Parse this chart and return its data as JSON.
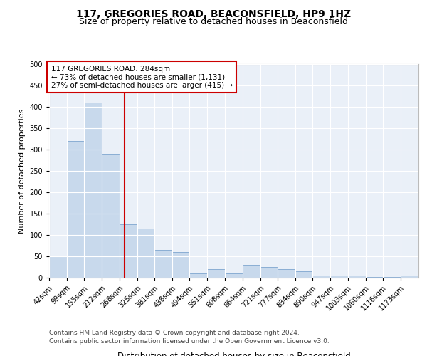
{
  "title": "117, GREGORIES ROAD, BEACONSFIELD, HP9 1HZ",
  "subtitle": "Size of property relative to detached houses in Beaconsfield",
  "xlabel": "Distribution of detached houses by size in Beaconsfield",
  "ylabel": "Number of detached properties",
  "footer_line1": "Contains HM Land Registry data © Crown copyright and database right 2024.",
  "footer_line2": "Contains public sector information licensed under the Open Government Licence v3.0.",
  "annotation_line1": "117 GREGORIES ROAD: 284sqm",
  "annotation_line2": "← 73% of detached houses are smaller (1,131)",
  "annotation_line3": "27% of semi-detached houses are larger (415) →",
  "bar_color": "#c8d9ec",
  "bar_edge_color": "#8aaed4",
  "ref_line_color": "#cc0000",
  "ref_line_x": 284,
  "categories": [
    "42sqm",
    "99sqm",
    "155sqm",
    "212sqm",
    "268sqm",
    "325sqm",
    "381sqm",
    "438sqm",
    "494sqm",
    "551sqm",
    "608sqm",
    "664sqm",
    "721sqm",
    "777sqm",
    "834sqm",
    "890sqm",
    "947sqm",
    "1003sqm",
    "1060sqm",
    "1116sqm",
    "1173sqm"
  ],
  "bin_edges": [
    42,
    99,
    155,
    212,
    268,
    325,
    381,
    438,
    494,
    551,
    608,
    664,
    721,
    777,
    834,
    890,
    947,
    1003,
    1060,
    1116,
    1173,
    1230
  ],
  "values": [
    50,
    320,
    410,
    290,
    125,
    115,
    65,
    60,
    10,
    20,
    10,
    30,
    25,
    20,
    15,
    5,
    5,
    5,
    2,
    2,
    5
  ],
  "ylim": [
    0,
    500
  ],
  "yticks": [
    0,
    50,
    100,
    150,
    200,
    250,
    300,
    350,
    400,
    450,
    500
  ],
  "fig_bg_color": "#ffffff",
  "plot_bg_color": "#eaf0f8",
  "title_fontsize": 10,
  "subtitle_fontsize": 9,
  "ylabel_fontsize": 8,
  "xlabel_fontsize": 8.5,
  "tick_fontsize": 7,
  "footer_fontsize": 6.5,
  "annotation_fontsize": 7.5
}
